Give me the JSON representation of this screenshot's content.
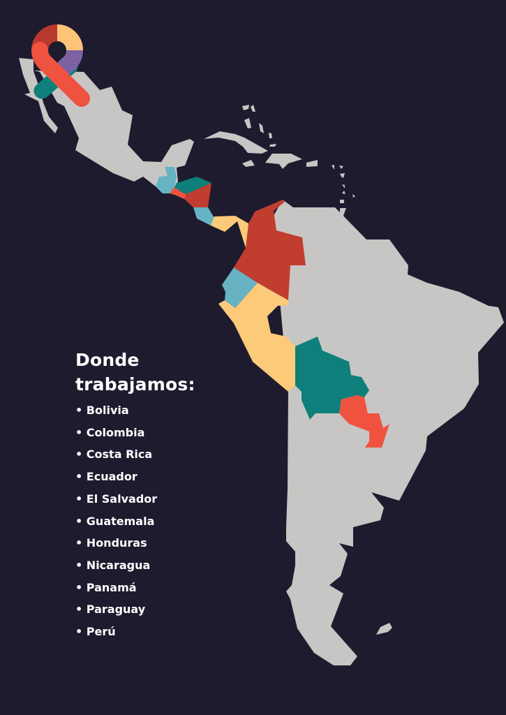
{
  "heading": {
    "line1": "Donde",
    "line2": "trabajamos:"
  },
  "countries": [
    "Bolivia",
    "Colombia",
    "Costa Rica",
    "Ecuador",
    "El Salvador",
    "Guatemala",
    "Honduras",
    "Nicaragua",
    "Panamá",
    "Paraguay",
    "Perú"
  ],
  "colors": {
    "background": "#1e1b2e",
    "land": "#c7c6c4",
    "Bolivia": "#0e7f7b",
    "Colombia": "#c13d2f",
    "Costa Rica": "#67b3c4",
    "Ecuador": "#67b3c4",
    "El Salvador": "#ef5340",
    "Guatemala": "#67b3c4",
    "Honduras": "#0e7f7b",
    "Nicaragua": "#c13d2f",
    "Panamá": "#fdca7a",
    "Paraguay": "#ef5340",
    "Perú": "#fdca7a"
  },
  "logo": {
    "icon": "awareness-ribbon-icon",
    "colors": [
      "#b83a2e",
      "#fdc478",
      "#7d62a3",
      "#ef5340",
      "#0e7f7b"
    ]
  }
}
